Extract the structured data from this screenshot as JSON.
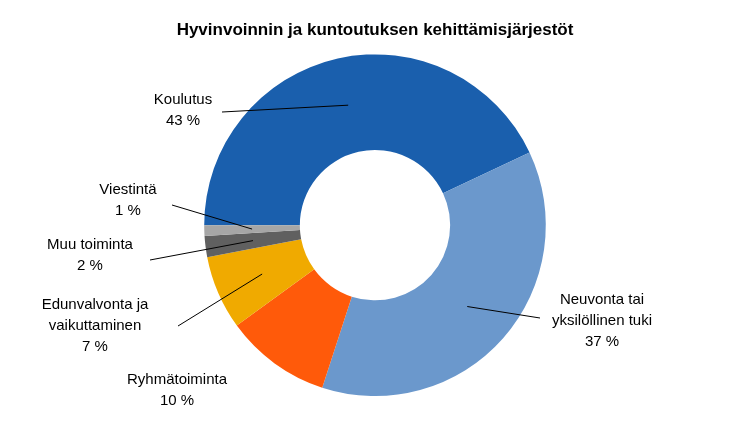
{
  "chart_data": {
    "type": "doughnut",
    "title": "Hyvinvoinnin ja kuntoutuksen kehittämisjärjestöt",
    "categories": [
      "Koulutus",
      "Neuvonta tai yksilöllinen tuki",
      "Ryhmätoiminta",
      "Edunvalvonta ja vaikuttaminen",
      "Muu toiminta",
      "Viestintä"
    ],
    "values": [
      43,
      37,
      10,
      7,
      2,
      1
    ],
    "value_labels": [
      "43 %",
      "37 %",
      "10 %",
      "7 %",
      "2 %",
      "1 %"
    ],
    "colors": [
      "#1a5fad",
      "#6b98cc",
      "#ff5a0a",
      "#f0aa00",
      "#606060",
      "#a6a6a6"
    ],
    "data_labels": true
  }
}
